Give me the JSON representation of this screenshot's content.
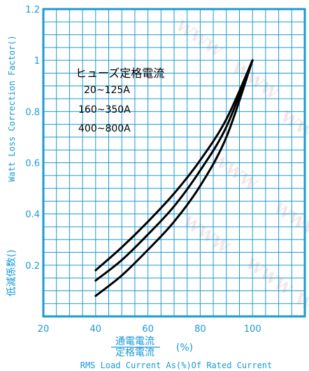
{
  "colors": {
    "grid": "#1a9ad6",
    "curve": "#000000",
    "axis_text": "#1a9ad6"
  },
  "chart_data": {
    "type": "line",
    "title": "",
    "xlim": [
      20,
      120
    ],
    "ylim": [
      0,
      1.2
    ],
    "x_ticks": [
      "20",
      "40",
      "60",
      "80",
      "100"
    ],
    "y_ticks": [
      "0.2",
      "0.4",
      "0.6",
      "0.8",
      "1",
      "1.2"
    ],
    "xlabel_jp_numerator": "通電電流",
    "xlabel_jp_denominator": "定格電流",
    "xlabel_jp_unit": "(%)",
    "xlabel_en": "RMS Load Current As(%)Of Rated Current",
    "ylabel_jp": "低減係数()",
    "ylabel_en": "Watt Loss Correction Factor()",
    "legend_title": "ヒューズ定格電流",
    "grid": true,
    "series": [
      {
        "name": "20~125A",
        "x": [
          40,
          50,
          60,
          70,
          80,
          90,
          100
        ],
        "y": [
          0.18,
          0.27,
          0.37,
          0.48,
          0.61,
          0.77,
          1.0
        ]
      },
      {
        "name": "160~350A",
        "x": [
          40,
          50,
          60,
          70,
          80,
          90,
          100
        ],
        "y": [
          0.14,
          0.22,
          0.32,
          0.43,
          0.57,
          0.74,
          1.0
        ]
      },
      {
        "name": "400~800A",
        "x": [
          40,
          50,
          60,
          70,
          80,
          90,
          100
        ],
        "y": [
          0.08,
          0.16,
          0.26,
          0.37,
          0.51,
          0.7,
          1.0
        ]
      }
    ]
  }
}
